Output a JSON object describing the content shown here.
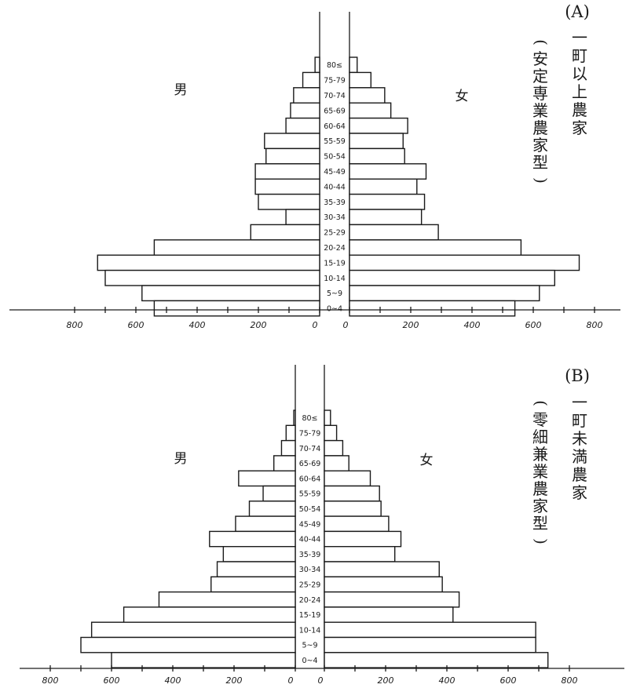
{
  "chart_data": [
    {
      "type": "bar",
      "panel_label": "(A)",
      "title_vertical": "一町以上農家",
      "subtitle_vertical": "(安定専業農家型)",
      "left_label": "男",
      "right_label": "女",
      "categories": [
        "80≤",
        "75-79",
        "70-74",
        "65-69",
        "60-64",
        "55-59",
        "50-54",
        "45-49",
        "40-44",
        "35-39",
        "30-34",
        "25-29",
        "20-24",
        "15-19",
        "10-14",
        "5~9",
        "0~4"
      ],
      "series": [
        {
          "name": "男",
          "values": [
            15,
            55,
            85,
            95,
            110,
            180,
            175,
            210,
            210,
            200,
            110,
            225,
            540,
            725,
            700,
            580,
            540
          ]
        },
        {
          "name": "女",
          "values": [
            25,
            70,
            115,
            135,
            190,
            175,
            180,
            250,
            220,
            245,
            235,
            290,
            560,
            750,
            670,
            620,
            540
          ]
        }
      ],
      "xticks_left": [
        "800",
        "600",
        "400",
        "200",
        "0"
      ],
      "xticks_right": [
        "0",
        "200",
        "400",
        "600",
        "800"
      ],
      "xlim": [
        0,
        800
      ]
    },
    {
      "type": "bar",
      "panel_label": "(B)",
      "title_vertical": "一町未満農家",
      "subtitle_vertical": "(零細兼業農家型)",
      "left_label": "男",
      "right_label": "女",
      "categories": [
        "80≤",
        "75-79",
        "70-74",
        "65-69",
        "60-64",
        "55-59",
        "50-54",
        "45-49",
        "40-44",
        "35-39",
        "30-34",
        "25-29",
        "20-24",
        "15-19",
        "10-14",
        "5~9",
        "0~4"
      ],
      "series": [
        {
          "name": "男",
          "values": [
            5,
            30,
            45,
            70,
            185,
            105,
            150,
            195,
            280,
            235,
            255,
            275,
            445,
            560,
            665,
            700,
            600
          ]
        },
        {
          "name": "女",
          "values": [
            20,
            40,
            60,
            80,
            150,
            180,
            185,
            210,
            250,
            230,
            375,
            385,
            440,
            420,
            690,
            690,
            730
          ]
        }
      ],
      "xticks_left": [
        "800",
        "600",
        "400",
        "200",
        "0"
      ],
      "xticks_right": [
        "0",
        "200",
        "400",
        "600",
        "800"
      ],
      "xlim": [
        0,
        800
      ]
    }
  ]
}
